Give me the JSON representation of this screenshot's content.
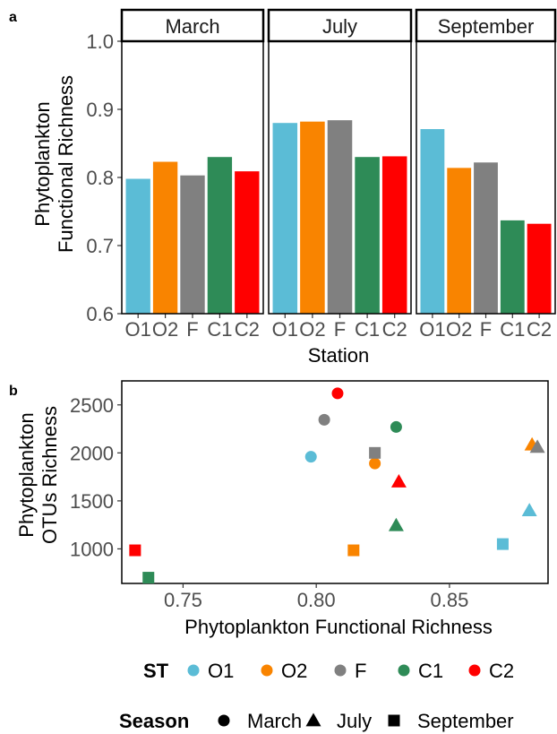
{
  "panel_labels": {
    "a": "a",
    "b": "b"
  },
  "panel_a": {
    "ylabel_line1": "Phytoplankton",
    "ylabel_line2": "Functional Richness",
    "xlabel": "Station"
  },
  "panel_b": {
    "ylabel_line1": "Phytoplankton",
    "ylabel_line2": "OTUs Richness",
    "xlabel": "Phytoplankton Functional Richness"
  },
  "legend": {
    "st_title": "ST",
    "stations": [
      {
        "label": "O1",
        "color": "#5BBCD6"
      },
      {
        "label": "O2",
        "color": "#F98400"
      },
      {
        "label": "F",
        "color": "#808080"
      },
      {
        "label": "C1",
        "color": "#2E8B57"
      },
      {
        "label": "C2",
        "color": "#FF0000"
      }
    ],
    "season_title": "Season",
    "seasons": [
      {
        "label": "March",
        "shape": "circle"
      },
      {
        "label": "July",
        "shape": "triangle"
      },
      {
        "label": "September",
        "shape": "square"
      }
    ]
  },
  "chart_data": [
    {
      "type": "bar",
      "facets": [
        "March",
        "July",
        "September"
      ],
      "categories": [
        "O1",
        "O2",
        "F",
        "C1",
        "C2"
      ],
      "colors": [
        "#5BBCD6",
        "#F98400",
        "#808080",
        "#2E8B57",
        "#FF0000"
      ],
      "values": {
        "March": [
          0.798,
          0.823,
          0.803,
          0.83,
          0.809
        ],
        "July": [
          0.88,
          0.882,
          0.884,
          0.83,
          0.831
        ],
        "September": [
          0.871,
          0.814,
          0.822,
          0.737,
          0.732
        ]
      },
      "ylim": [
        0.6,
        1.0
      ],
      "yticks": [
        "0.6",
        "0.7",
        "0.8",
        "0.9",
        "1.0"
      ],
      "xlabel": "Station",
      "ylabel": "Phytoplankton Functional Richness",
      "grid": false
    },
    {
      "type": "scatter",
      "xlim": [
        0.727,
        0.887
      ],
      "ylim": [
        640,
        2750
      ],
      "xticks": [
        "0.75",
        "0.80",
        "0.85"
      ],
      "yticks": [
        "1000",
        "1500",
        "2000",
        "2500"
      ],
      "xlabel": "Phytoplankton Functional Richness",
      "ylabel": "Phytoplankton OTUs Richness",
      "grid": false,
      "legend": "bottom",
      "points": [
        {
          "station": "O1",
          "season": "March",
          "x": 0.798,
          "y": 1960
        },
        {
          "station": "O2",
          "season": "March",
          "x": 0.822,
          "y": 1890
        },
        {
          "station": "F",
          "season": "March",
          "x": 0.803,
          "y": 2345
        },
        {
          "station": "C1",
          "season": "March",
          "x": 0.83,
          "y": 2270
        },
        {
          "station": "C2",
          "season": "March",
          "x": 0.808,
          "y": 2620
        },
        {
          "station": "O1",
          "season": "July",
          "x": 0.88,
          "y": 1400
        },
        {
          "station": "O2",
          "season": "July",
          "x": 0.881,
          "y": 2085
        },
        {
          "station": "F",
          "season": "July",
          "x": 0.883,
          "y": 2060
        },
        {
          "station": "C1",
          "season": "July",
          "x": 0.83,
          "y": 1245
        },
        {
          "station": "C2",
          "season": "July",
          "x": 0.831,
          "y": 1700
        },
        {
          "station": "O1",
          "season": "September",
          "x": 0.87,
          "y": 1050
        },
        {
          "station": "O2",
          "season": "September",
          "x": 0.814,
          "y": 985
        },
        {
          "station": "F",
          "season": "September",
          "x": 0.822,
          "y": 2000
        },
        {
          "station": "C1",
          "season": "September",
          "x": 0.737,
          "y": 700
        },
        {
          "station": "C2",
          "season": "September",
          "x": 0.732,
          "y": 985
        }
      ]
    }
  ]
}
